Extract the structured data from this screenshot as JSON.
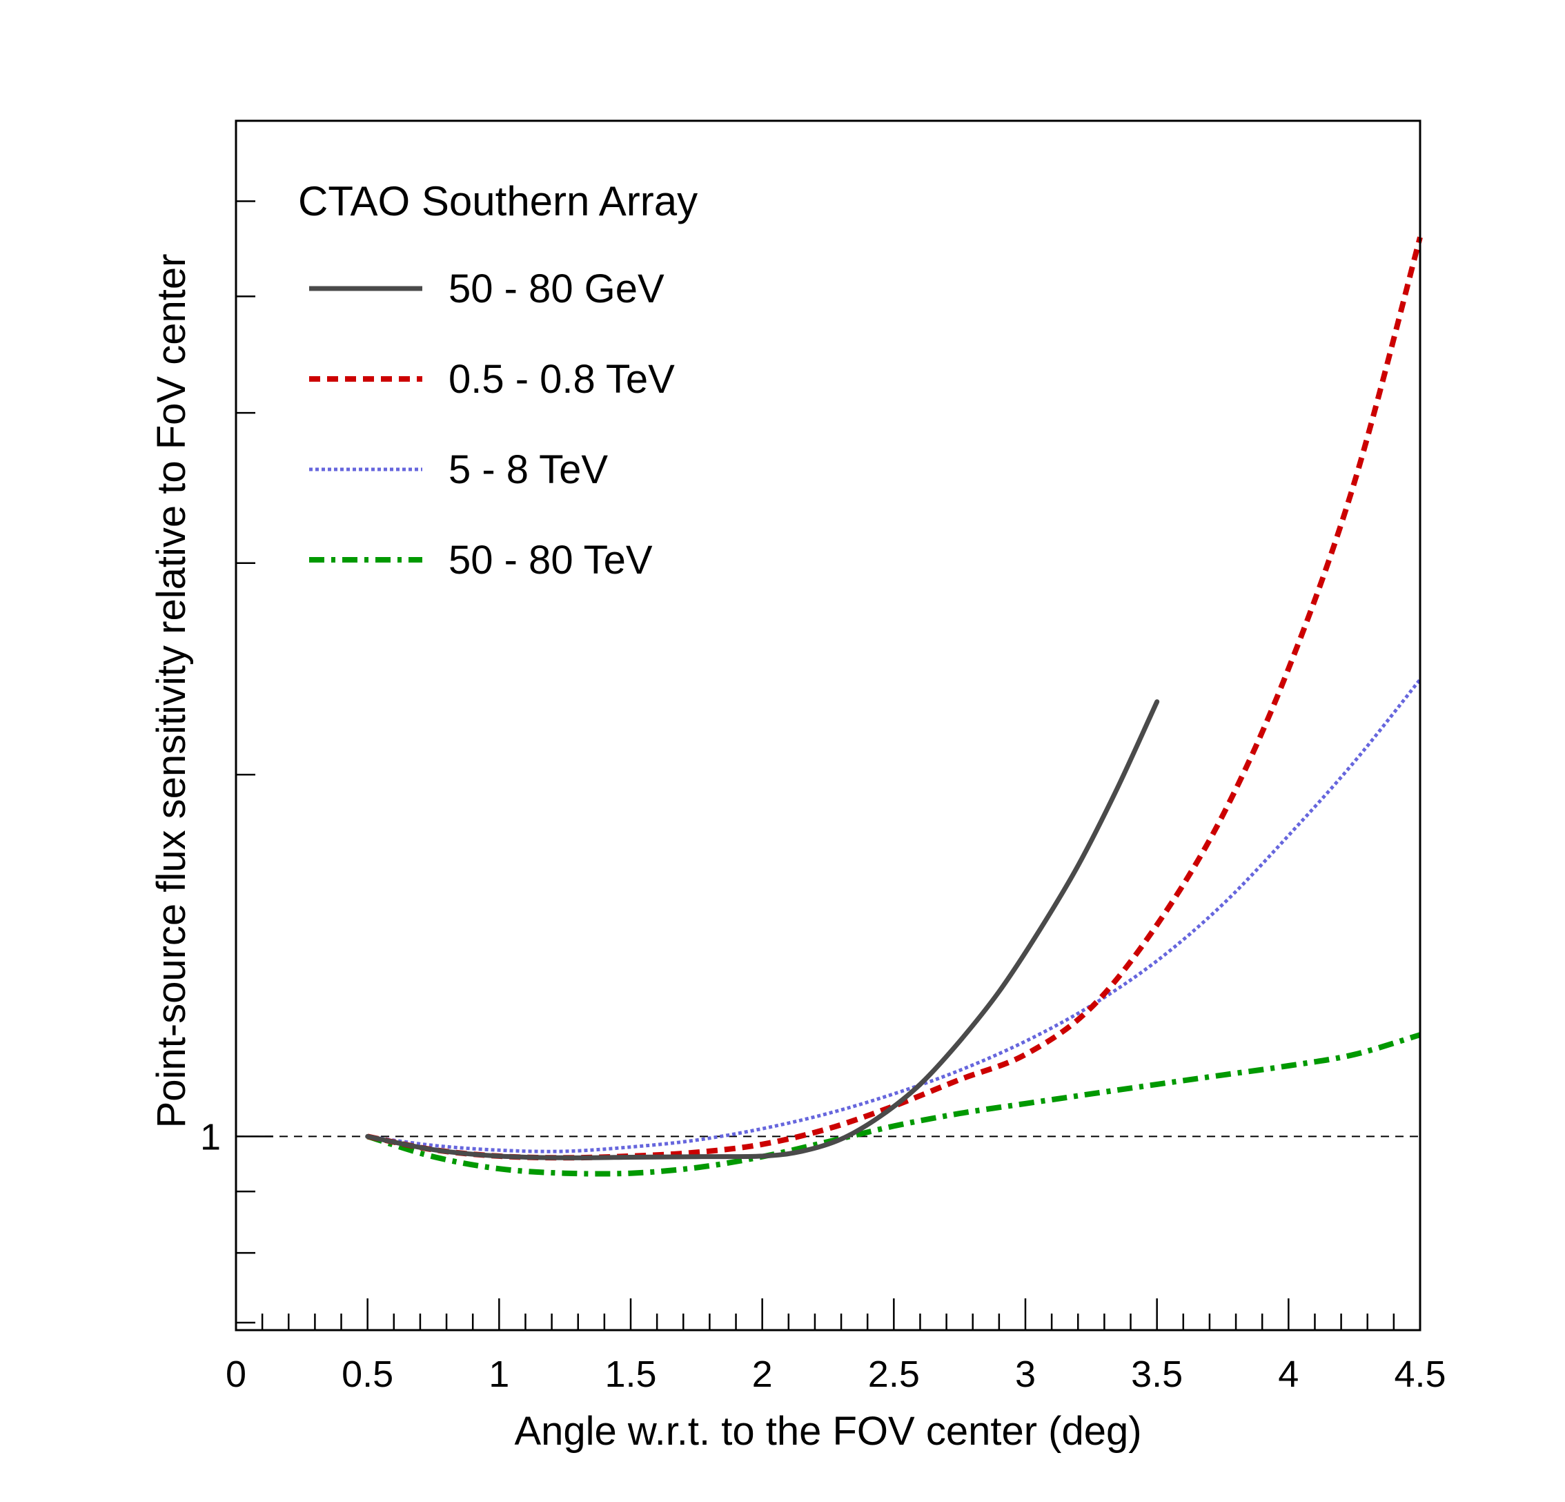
{
  "chart_data": {
    "type": "line",
    "xlabel": "Angle w.r.t. to the FOV center (deg)",
    "ylabel": "Point-source flux sensitivity relative to FoV center",
    "xlim": [
      0,
      4.5
    ],
    "ylim": [
      0.69,
      7.0
    ],
    "yscale": "log",
    "x_ticks": [
      {
        "value": 0,
        "label": "0"
      },
      {
        "value": 0.5,
        "label": "0.5"
      },
      {
        "value": 1,
        "label": "1"
      },
      {
        "value": 1.5,
        "label": "1.5"
      },
      {
        "value": 2,
        "label": "2"
      },
      {
        "value": 2.5,
        "label": "2.5"
      },
      {
        "value": 3,
        "label": "3"
      },
      {
        "value": 3.5,
        "label": "3.5"
      },
      {
        "value": 4,
        "label": "4"
      },
      {
        "value": 4.5,
        "label": "4.5"
      }
    ],
    "y_ticks": [
      {
        "value": 1,
        "label": "1"
      }
    ],
    "y_minor_ticks": [
      0.7,
      0.8,
      0.9,
      2,
      3,
      4,
      5,
      6
    ],
    "reference_line": {
      "y": 1,
      "style": "dashed",
      "color": "#000000"
    },
    "legend": {
      "title": "CTAO Southern Array",
      "position": "top-left"
    },
    "grid": false,
    "series": [
      {
        "name": "50 - 80 GeV",
        "color": "#4a4a4a",
        "style": "solid",
        "x": [
          0.5,
          0.75,
          1.0,
          1.25,
          1.5,
          1.75,
          2.0,
          2.15,
          2.3,
          2.45,
          2.6,
          2.75,
          2.9,
          3.05,
          3.2,
          3.35,
          3.5
        ],
        "y": [
          1.0,
          0.975,
          0.963,
          0.96,
          0.961,
          0.962,
          0.963,
          0.972,
          0.995,
          1.04,
          1.105,
          1.2,
          1.32,
          1.48,
          1.68,
          1.95,
          2.3
        ]
      },
      {
        "name": "0.5 - 0.8 TeV",
        "color": "#cc0000",
        "style": "dashed",
        "x": [
          0.5,
          0.75,
          1.0,
          1.25,
          1.5,
          1.75,
          2.0,
          2.25,
          2.5,
          2.75,
          3.0,
          3.25,
          3.5,
          3.75,
          4.0,
          4.25,
          4.5
        ],
        "y": [
          1.0,
          0.975,
          0.963,
          0.96,
          0.963,
          0.97,
          0.985,
          1.015,
          1.06,
          1.115,
          1.17,
          1.28,
          1.5,
          1.85,
          2.45,
          3.5,
          5.6
        ]
      },
      {
        "name": "5 - 8 TeV",
        "color": "#6666dd",
        "style": "dotted",
        "x": [
          0.5,
          0.75,
          1.0,
          1.25,
          1.5,
          1.75,
          2.0,
          2.25,
          2.5,
          2.75,
          3.0,
          3.25,
          3.5,
          3.75,
          4.0,
          4.25,
          4.5
        ],
        "y": [
          1.0,
          0.983,
          0.974,
          0.972,
          0.98,
          0.993,
          1.015,
          1.045,
          1.085,
          1.135,
          1.2,
          1.285,
          1.4,
          1.56,
          1.78,
          2.05,
          2.4
        ]
      },
      {
        "name": "50 - 80 TeV",
        "color": "#009900",
        "style": "dashdot",
        "x": [
          0.5,
          0.75,
          1.0,
          1.25,
          1.5,
          1.75,
          2.0,
          2.25,
          2.5,
          2.75,
          3.0,
          3.25,
          3.5,
          3.75,
          4.0,
          4.25,
          4.5
        ],
        "y": [
          1.0,
          0.962,
          0.94,
          0.932,
          0.932,
          0.942,
          0.962,
          0.99,
          1.02,
          1.045,
          1.065,
          1.085,
          1.105,
          1.125,
          1.145,
          1.17,
          1.215
        ]
      }
    ]
  }
}
